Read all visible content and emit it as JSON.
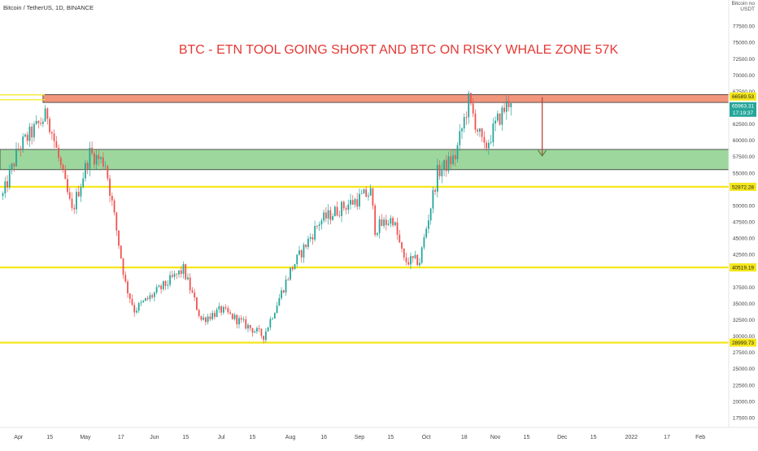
{
  "symbol_label": "Bitcoin / TetherUS, 1D, BINANCE",
  "axis_currency": [
    "Bitcoin no",
    "USDT"
  ],
  "colors": {
    "up": "#26a69a",
    "down": "#ef5350",
    "level_line": "#f5e71b",
    "resistance_zone": "#f08a6e",
    "support_zone": "#7cc97c",
    "arrow": "#b5473a",
    "title": "#e53935",
    "current_price_badge": "#26a69a"
  },
  "chart_data": {
    "type": "candlestick",
    "title": "BTC - ETN TOOL GOING SHORT AND BTC ON RISKY WHALE ZONE 57K",
    "ylim": [
      16000,
      81500
    ],
    "y_ticks": [
      "77500.00",
      "75000.00",
      "72500.00",
      "70000.00",
      "67500.00",
      "65000.00",
      "62500.00",
      "60000.00",
      "57500.00",
      "55000.00",
      "50000.00",
      "47500.00",
      "45000.00",
      "42500.00",
      "37500.00",
      "35000.00",
      "32500.00",
      "30000.00",
      "27500.00",
      "25000.00",
      "22500.00",
      "20000.00",
      "17500.00"
    ],
    "x_ticks": [
      {
        "label": "Apr",
        "date": "2021-04-01"
      },
      {
        "label": "15",
        "date": "2021-04-15"
      },
      {
        "label": "May",
        "date": "2021-05-01"
      },
      {
        "label": "17",
        "date": "2021-05-17"
      },
      {
        "label": "Jun",
        "date": "2021-06-01"
      },
      {
        "label": "15",
        "date": "2021-06-15"
      },
      {
        "label": "Jul",
        "date": "2021-07-01"
      },
      {
        "label": "15",
        "date": "2021-07-15"
      },
      {
        "label": "Aug",
        "date": "2021-08-01"
      },
      {
        "label": "16",
        "date": "2021-08-16"
      },
      {
        "label": "Sep",
        "date": "2021-09-01"
      },
      {
        "label": "15",
        "date": "2021-09-15"
      },
      {
        "label": "Oct",
        "date": "2021-10-01"
      },
      {
        "label": "18",
        "date": "2021-10-18"
      },
      {
        "label": "Nov",
        "date": "2021-11-01"
      },
      {
        "label": "15",
        "date": "2021-11-15"
      },
      {
        "label": "Dec",
        "date": "2021-12-01"
      },
      {
        "label": "15",
        "date": "2021-12-15"
      },
      {
        "label": "2022",
        "date": "2022-01-01"
      },
      {
        "label": "17",
        "date": "2022-01-17"
      },
      {
        "label": "Feb",
        "date": "2022-02-01"
      }
    ],
    "horizontal_levels": [
      {
        "price": 52872.28,
        "label": "52872.28"
      },
      {
        "price": 40519.19,
        "label": "40519.19"
      },
      {
        "price": 28999.73,
        "label": "28999.73"
      }
    ],
    "price_labels": [
      {
        "price": 66589.53,
        "label": "66589.53"
      },
      {
        "price": 65963.31,
        "label": "65963.31",
        "countdown": "17:19:37"
      }
    ],
    "zones": [
      {
        "name": "resistance",
        "from_date": "2021-04-12",
        "to_date": "2022-02-28",
        "low": 65800,
        "high": 67000
      },
      {
        "name": "support",
        "from_date": "2021-03-20",
        "to_date": "2022-02-28",
        "low": 55500,
        "high": 58600
      }
    ],
    "arrow": {
      "date": "2021-11-22",
      "from_price": 66600,
      "to_price": 57600
    },
    "trend_anchors": [
      {
        "date": "2021-03-25",
        "price": 51500
      },
      {
        "date": "2021-04-01",
        "price": 58800
      },
      {
        "date": "2021-04-14",
        "price": 64000
      },
      {
        "date": "2021-04-25",
        "price": 49000
      },
      {
        "date": "2021-05-03",
        "price": 58000
      },
      {
        "date": "2021-05-10",
        "price": 56500
      },
      {
        "date": "2021-05-19",
        "price": 38000
      },
      {
        "date": "2021-05-23",
        "price": 34000
      },
      {
        "date": "2021-06-01",
        "price": 36500
      },
      {
        "date": "2021-06-14",
        "price": 40200
      },
      {
        "date": "2021-06-22",
        "price": 32500
      },
      {
        "date": "2021-07-01",
        "price": 34000
      },
      {
        "date": "2021-07-20",
        "price": 30000
      },
      {
        "date": "2021-08-01",
        "price": 40000
      },
      {
        "date": "2021-08-14",
        "price": 47500
      },
      {
        "date": "2021-08-23",
        "price": 49500
      },
      {
        "date": "2021-09-06",
        "price": 52000
      },
      {
        "date": "2021-09-08",
        "price": 46500
      },
      {
        "date": "2021-09-16",
        "price": 48000
      },
      {
        "date": "2021-09-21",
        "price": 41500
      },
      {
        "date": "2021-09-28",
        "price": 41500
      },
      {
        "date": "2021-10-06",
        "price": 55000
      },
      {
        "date": "2021-10-14",
        "price": 57500
      },
      {
        "date": "2021-10-20",
        "price": 66000
      },
      {
        "date": "2021-10-27",
        "price": 58500
      },
      {
        "date": "2021-11-02",
        "price": 63000
      },
      {
        "date": "2021-11-08",
        "price": 66500
      }
    ]
  }
}
